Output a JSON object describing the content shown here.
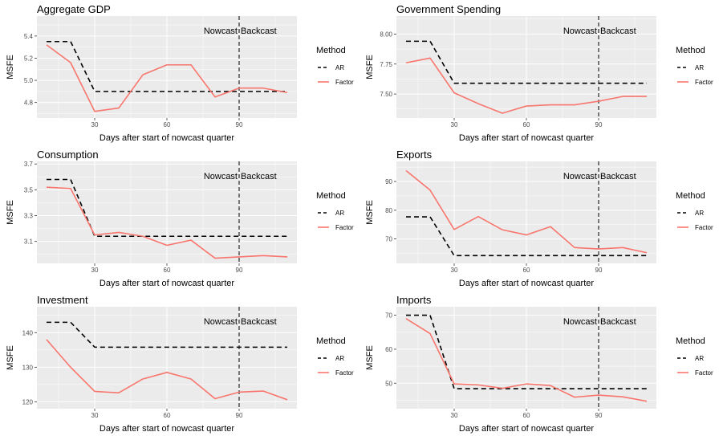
{
  "chart_data": [
    {
      "type": "line",
      "title": "Aggregate GDP",
      "xlabel": "Days after start of nowcast quarter",
      "ylabel": "MSFE",
      "xlim": [
        6,
        114
      ],
      "ylim": [
        4.66,
        5.58
      ],
      "xticks": [
        30,
        60,
        90
      ],
      "yticks": [
        4.8,
        5.0,
        5.2,
        5.4
      ],
      "ytick_labels": [
        "4.8",
        "5.0",
        "5.2",
        "5.4"
      ],
      "vline": 90,
      "annotations": [
        "Nowcast",
        "Backcast"
      ],
      "legend_title": "Method",
      "series": [
        {
          "name": "AR",
          "style": "dashed",
          "color": "#000000",
          "x": [
            10,
            20,
            30,
            40,
            50,
            60,
            70,
            80,
            90,
            100,
            110
          ],
          "y": [
            5.35,
            5.35,
            4.9,
            4.9,
            4.9,
            4.9,
            4.9,
            4.9,
            4.9,
            4.9,
            4.9
          ]
        },
        {
          "name": "Factor",
          "style": "solid",
          "color": "#F8766D",
          "x": [
            10,
            20,
            30,
            40,
            50,
            60,
            70,
            80,
            90,
            100,
            110
          ],
          "y": [
            5.32,
            5.16,
            4.72,
            4.75,
            5.05,
            5.14,
            5.14,
            4.85,
            4.93,
            4.93,
            4.89
          ]
        }
      ]
    },
    {
      "type": "line",
      "title": "Government Spending",
      "xlabel": "Days after start of nowcast quarter",
      "ylabel": "MSFE",
      "xlim": [
        6,
        114
      ],
      "ylim": [
        7.3,
        8.15
      ],
      "xticks": [
        30,
        60,
        90
      ],
      "yticks": [
        7.5,
        7.75,
        8.0
      ],
      "ytick_labels": [
        "7.50",
        "7.75",
        "8.00"
      ],
      "vline": 90,
      "annotations": [
        "Nowcast",
        "Backcast"
      ],
      "legend_title": "Method",
      "series": [
        {
          "name": "AR",
          "style": "dashed",
          "color": "#000000",
          "x": [
            10,
            20,
            30,
            40,
            50,
            60,
            70,
            80,
            90,
            100,
            110
          ],
          "y": [
            7.94,
            7.94,
            7.59,
            7.59,
            7.59,
            7.59,
            7.59,
            7.59,
            7.59,
            7.59,
            7.59
          ]
        },
        {
          "name": "Factor",
          "style": "solid",
          "color": "#F8766D",
          "x": [
            10,
            20,
            30,
            40,
            50,
            60,
            70,
            80,
            90,
            100,
            110
          ],
          "y": [
            7.76,
            7.8,
            7.51,
            7.42,
            7.34,
            7.4,
            7.41,
            7.41,
            7.44,
            7.48,
            7.48
          ]
        }
      ]
    },
    {
      "type": "line",
      "title": "Consumption",
      "xlabel": "Days after start of nowcast quarter",
      "ylabel": "MSFE",
      "xlim": [
        6,
        114
      ],
      "ylim": [
        2.93,
        3.72
      ],
      "xticks": [
        30,
        60,
        90
      ],
      "yticks": [
        3.1,
        3.3,
        3.5,
        3.7
      ],
      "ytick_labels": [
        "3.1",
        "3.3",
        "3.5",
        "3.7"
      ],
      "vline": 90,
      "annotations": [
        "Nowcast",
        "Backcast"
      ],
      "legend_title": "Method",
      "series": [
        {
          "name": "AR",
          "style": "dashed",
          "color": "#000000",
          "x": [
            10,
            20,
            30,
            40,
            50,
            60,
            70,
            80,
            90,
            100,
            110
          ],
          "y": [
            3.58,
            3.58,
            3.14,
            3.14,
            3.14,
            3.14,
            3.14,
            3.14,
            3.14,
            3.14,
            3.14
          ]
        },
        {
          "name": "Factor",
          "style": "solid",
          "color": "#F8766D",
          "x": [
            10,
            20,
            30,
            40,
            50,
            60,
            70,
            80,
            90,
            100,
            110
          ],
          "y": [
            3.52,
            3.51,
            3.15,
            3.17,
            3.14,
            3.07,
            3.11,
            2.97,
            2.98,
            2.99,
            2.98
          ]
        }
      ]
    },
    {
      "type": "line",
      "title": "Exports",
      "xlabel": "Days after start of nowcast quarter",
      "ylabel": "MSFE",
      "xlim": [
        6,
        114
      ],
      "ylim": [
        61.5,
        97
      ],
      "xticks": [
        30,
        60,
        90
      ],
      "yticks": [
        70,
        80,
        90
      ],
      "ytick_labels": [
        "70",
        "80",
        "90"
      ],
      "vline": 90,
      "annotations": [
        "Nowcast",
        "Backcast"
      ],
      "legend_title": "Method",
      "series": [
        {
          "name": "AR",
          "style": "dashed",
          "color": "#000000",
          "x": [
            10,
            20,
            30,
            40,
            50,
            60,
            70,
            80,
            90,
            100,
            110
          ],
          "y": [
            77.7,
            77.7,
            64.2,
            64.2,
            64.2,
            64.2,
            64.2,
            64.2,
            64.2,
            64.2,
            64.2
          ]
        },
        {
          "name": "Factor",
          "style": "solid",
          "color": "#F8766D",
          "x": [
            10,
            20,
            30,
            40,
            50,
            60,
            70,
            80,
            90,
            100,
            110
          ],
          "y": [
            93.8,
            87.0,
            73.3,
            77.8,
            73.2,
            71.4,
            74.3,
            67.0,
            66.5,
            67.0,
            65.2
          ]
        }
      ]
    },
    {
      "type": "line",
      "title": "Investment",
      "xlabel": "Days after start of nowcast quarter",
      "ylabel": "MSFE",
      "xlim": [
        6,
        114
      ],
      "ylim": [
        118,
        147.5
      ],
      "xticks": [
        30,
        60,
        90
      ],
      "yticks": [
        120,
        130,
        140
      ],
      "ytick_labels": [
        "120",
        "130",
        "140"
      ],
      "vline": 90,
      "annotations": [
        "Nowcast",
        "Backcast"
      ],
      "legend_title": "Method",
      "series": [
        {
          "name": "AR",
          "style": "dashed",
          "color": "#000000",
          "x": [
            10,
            20,
            30,
            40,
            50,
            60,
            70,
            80,
            90,
            100,
            110
          ],
          "y": [
            143.0,
            143.0,
            135.8,
            135.8,
            135.8,
            135.8,
            135.8,
            135.8,
            135.8,
            135.8,
            135.8
          ]
        },
        {
          "name": "Factor",
          "style": "solid",
          "color": "#F8766D",
          "x": [
            10,
            20,
            30,
            40,
            50,
            60,
            70,
            80,
            90,
            100,
            110
          ],
          "y": [
            138.0,
            130.0,
            123.0,
            122.6,
            126.6,
            128.5,
            126.6,
            120.9,
            122.8,
            123.1,
            120.6
          ]
        }
      ]
    },
    {
      "type": "line",
      "title": "Imports",
      "xlabel": "Days after start of nowcast quarter",
      "ylabel": "MSFE",
      "xlim": [
        6,
        114
      ],
      "ylim": [
        42.5,
        72.5
      ],
      "xticks": [
        30,
        60,
        90
      ],
      "yticks": [
        50,
        60,
        70
      ],
      "ytick_labels": [
        "50",
        "60",
        "70"
      ],
      "vline": 90,
      "annotations": [
        "Nowcast",
        "Backcast"
      ],
      "legend_title": "Method",
      "series": [
        {
          "name": "AR",
          "style": "dashed",
          "color": "#000000",
          "x": [
            10,
            20,
            30,
            40,
            50,
            60,
            70,
            80,
            90,
            100,
            110
          ],
          "y": [
            70.0,
            70.0,
            48.4,
            48.4,
            48.4,
            48.4,
            48.4,
            48.4,
            48.4,
            48.4,
            48.4
          ]
        },
        {
          "name": "Factor",
          "style": "solid",
          "color": "#F8766D",
          "x": [
            10,
            20,
            30,
            40,
            50,
            60,
            70,
            80,
            90,
            100,
            110
          ],
          "y": [
            69.0,
            64.6,
            49.8,
            49.5,
            48.5,
            49.8,
            49.3,
            45.9,
            46.5,
            46.0,
            44.7
          ]
        }
      ]
    }
  ]
}
